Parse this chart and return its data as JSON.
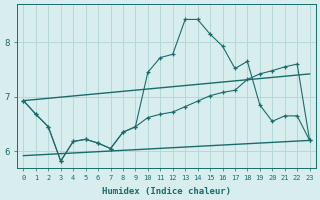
{
  "xlabel": "Humidex (Indice chaleur)",
  "bg_color": "#d8eeee",
  "grid_color": "#b5d8d8",
  "line_color": "#1a6b6b",
  "xlim": [
    -0.5,
    23.5
  ],
  "ylim": [
    5.7,
    8.7
  ],
  "xticks": [
    0,
    1,
    2,
    3,
    4,
    5,
    6,
    7,
    8,
    9,
    10,
    11,
    12,
    13,
    14,
    15,
    16,
    17,
    18,
    19,
    20,
    21,
    22,
    23
  ],
  "yticks": [
    6,
    7,
    8
  ],
  "curve1_x": [
    0,
    1,
    2,
    3,
    4,
    5,
    6,
    7,
    8,
    9,
    10,
    11,
    12,
    13,
    14,
    15,
    16,
    17,
    18,
    19,
    20,
    21,
    22,
    23
  ],
  "curve1_y": [
    6.93,
    6.68,
    6.45,
    5.82,
    6.18,
    6.22,
    6.15,
    6.05,
    6.35,
    6.45,
    7.45,
    7.72,
    7.78,
    8.42,
    8.42,
    8.15,
    7.93,
    7.52,
    7.65,
    6.85,
    6.55,
    6.65,
    6.65,
    6.2
  ],
  "curve2_x": [
    0,
    1,
    2,
    3,
    4,
    5,
    6,
    7,
    8,
    9,
    10,
    11,
    12,
    13,
    14,
    15,
    16,
    17,
    18,
    19,
    20,
    21,
    22,
    23
  ],
  "curve2_y": [
    6.93,
    6.68,
    6.45,
    5.82,
    6.18,
    6.22,
    6.15,
    6.05,
    6.35,
    6.45,
    6.62,
    6.68,
    6.72,
    6.82,
    6.92,
    7.02,
    7.08,
    7.12,
    7.32,
    7.42,
    7.48,
    7.55,
    7.6,
    6.2
  ],
  "trend1_x": [
    0,
    23
  ],
  "trend1_y": [
    6.93,
    7.42
  ],
  "trend2_x": [
    0,
    23
  ],
  "trend2_y": [
    5.92,
    6.2
  ]
}
